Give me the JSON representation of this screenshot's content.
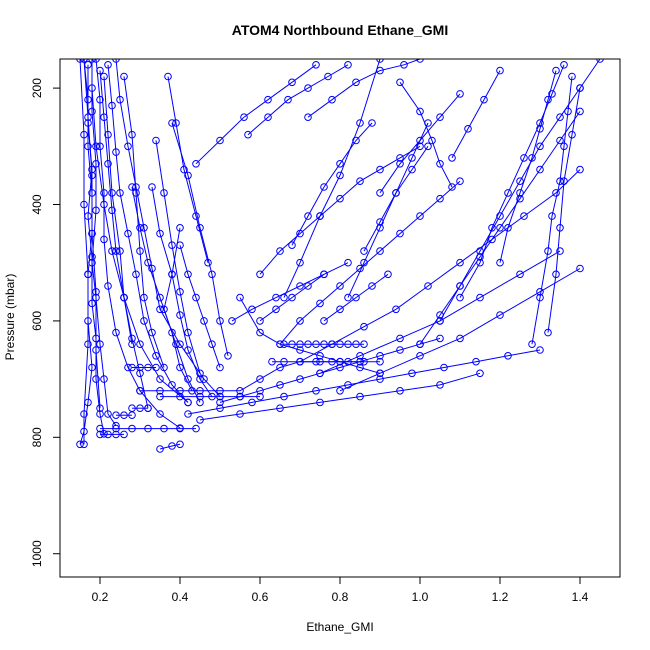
{
  "chart_data": {
    "type": "scatter",
    "title": "ATOM4 Northbound Ethane_GMI",
    "xlabel": "Ethane_GMI",
    "ylabel": "Pressure (mbar)",
    "xlim": [
      0.1,
      1.5
    ],
    "ylim": [
      1040,
      150
    ],
    "y_reversed": true,
    "x_ticks": [
      0.2,
      0.4,
      0.6,
      0.8,
      1.0,
      1.2,
      1.4
    ],
    "x_tick_labels": [
      "0.2",
      "0.4",
      "0.6",
      "0.8",
      "1.0",
      "1.2",
      "1.4"
    ],
    "y_ticks": [
      200,
      400,
      600,
      800,
      1000
    ],
    "y_tick_labels": [
      "200",
      "400",
      "600",
      "800",
      "1000"
    ],
    "grid": false,
    "color": "#0000ff",
    "marker": "open-circle",
    "series": [
      {
        "x": [
          0.16,
          0.17,
          0.17,
          0.18,
          0.18,
          0.17,
          0.17,
          0.18,
          0.17,
          0.16,
          0.15
        ],
        "y": [
          150,
          220,
          300,
          380,
          450,
          520,
          600,
          680,
          740,
          790,
          812
        ]
      },
      {
        "x": [
          0.18,
          0.18,
          0.19,
          0.19,
          0.18,
          0.19,
          0.2,
          0.21,
          0.22,
          0.24
        ],
        "y": [
          150,
          240,
          330,
          410,
          500,
          560,
          640,
          700,
          760,
          780
        ]
      },
      {
        "x": [
          0.19,
          0.2,
          0.2,
          0.21,
          0.21,
          0.22,
          0.24,
          0.27,
          0.3,
          0.35,
          0.4
        ],
        "y": [
          150,
          220,
          300,
          380,
          460,
          540,
          620,
          680,
          720,
          760,
          784
        ]
      },
      {
        "x": [
          0.17,
          0.17,
          0.18,
          0.17,
          0.18,
          0.18,
          0.19,
          0.19,
          0.2,
          0.21
        ],
        "y": [
          160,
          260,
          340,
          420,
          490,
          570,
          630,
          700,
          760,
          794
        ]
      },
      {
        "x": [
          0.2,
          0.21,
          0.22,
          0.23,
          0.24,
          0.26,
          0.28,
          0.3,
          0.32
        ],
        "y": [
          170,
          250,
          330,
          410,
          480,
          560,
          630,
          690,
          750
        ]
      },
      {
        "x": [
          0.22,
          0.23,
          0.24,
          0.25,
          0.27,
          0.29,
          0.31,
          0.34,
          0.38,
          0.42
        ],
        "y": [
          160,
          230,
          310,
          380,
          450,
          520,
          600,
          660,
          710,
          740
        ]
      },
      {
        "x": [
          0.24,
          0.25,
          0.27,
          0.29,
          0.31,
          0.33,
          0.35,
          0.4,
          0.46,
          0.5
        ],
        "y": [
          150,
          220,
          300,
          370,
          440,
          510,
          580,
          640,
          700,
          730
        ]
      },
      {
        "x": [
          0.18,
          0.19,
          0.21,
          0.23,
          0.26,
          0.3,
          0.35,
          0.42
        ],
        "y": [
          200,
          300,
          400,
          480,
          560,
          640,
          700,
          740
        ]
      },
      {
        "x": [
          0.28,
          0.3,
          0.32,
          0.35,
          0.38,
          0.4,
          0.43
        ],
        "y": [
          370,
          440,
          500,
          560,
          620,
          680,
          720
        ]
      },
      {
        "x": [
          0.33,
          0.35,
          0.38,
          0.4,
          0.42,
          0.45,
          0.48
        ],
        "y": [
          370,
          450,
          520,
          590,
          650,
          700,
          730
        ]
      },
      {
        "x": [
          0.34,
          0.36,
          0.38,
          0.4,
          0.42,
          0.45
        ],
        "y": [
          290,
          380,
          470,
          550,
          620,
          690
        ]
      },
      {
        "x": [
          0.38,
          0.42,
          0.45,
          0.48,
          0.5,
          0.52
        ],
        "y": [
          260,
          350,
          440,
          520,
          600,
          660
        ]
      },
      {
        "x": [
          0.4,
          0.38,
          0.36,
          0.39,
          0.42,
          0.45
        ],
        "y": [
          440,
          520,
          580,
          640,
          700,
          740
        ]
      },
      {
        "x": [
          0.55,
          0.6,
          0.65,
          0.7,
          0.75,
          0.8,
          0.85,
          0.9
        ],
        "y": [
          560,
          620,
          640,
          650,
          660,
          670,
          680,
          690
        ]
      },
      {
        "x": [
          0.53,
          0.58,
          0.64,
          0.7,
          0.76,
          0.82
        ],
        "y": [
          600,
          580,
          560,
          540,
          520,
          500
        ]
      },
      {
        "x": [
          0.6,
          0.65,
          0.7,
          0.75,
          0.8,
          0.85,
          0.9,
          0.95,
          1.0
        ],
        "y": [
          520,
          480,
          450,
          420,
          390,
          360,
          340,
          320,
          300
        ]
      },
      {
        "x": [
          0.65,
          0.7,
          0.75,
          0.8,
          0.85,
          0.9,
          0.95,
          1.0,
          1.05,
          1.1
        ],
        "y": [
          640,
          600,
          570,
          540,
          510,
          480,
          450,
          420,
          390,
          360
        ]
      },
      {
        "x": [
          0.7,
          0.78,
          0.86,
          0.94,
          1.02,
          1.1,
          1.18,
          1.26,
          1.34,
          1.4
        ],
        "y": [
          670,
          640,
          610,
          580,
          540,
          500,
          460,
          420,
          380,
          340
        ]
      },
      {
        "x": [
          0.75,
          0.85,
          0.95,
          1.05,
          1.15,
          1.25,
          1.35
        ],
        "y": [
          690,
          660,
          630,
          600,
          560,
          520,
          480
        ]
      },
      {
        "x": [
          0.8,
          0.9,
          1.0,
          1.1,
          1.2,
          1.3,
          1.4
        ],
        "y": [
          720,
          690,
          660,
          630,
          590,
          550,
          510
        ]
      },
      {
        "x": [
          1.0,
          1.05,
          1.1,
          1.15,
          1.2,
          1.25,
          1.3,
          1.35,
          1.4
        ],
        "y": [
          640,
          590,
          540,
          490,
          440,
          390,
          340,
          290,
          240
        ]
      },
      {
        "x": [
          1.05,
          1.1,
          1.15,
          1.2,
          1.25,
          1.3,
          1.35,
          1.4,
          1.45
        ],
        "y": [
          600,
          540,
          480,
          420,
          360,
          300,
          250,
          200,
          150
        ]
      },
      {
        "x": [
          1.1,
          1.15,
          1.18,
          1.22,
          1.26,
          1.3,
          1.33,
          1.36
        ],
        "y": [
          560,
          500,
          440,
          380,
          320,
          260,
          210,
          160
        ]
      },
      {
        "x": [
          1.2,
          1.22,
          1.25,
          1.28,
          1.3,
          1.32,
          1.34
        ],
        "y": [
          500,
          440,
          380,
          320,
          270,
          220,
          170
        ]
      },
      {
        "x": [
          1.28,
          1.3,
          1.32,
          1.33,
          1.35,
          1.36,
          1.37,
          1.38
        ],
        "y": [
          640,
          560,
          480,
          420,
          360,
          300,
          240,
          180
        ]
      },
      {
        "x": [
          1.32,
          1.34,
          1.35,
          1.36,
          1.38,
          1.4
        ],
        "y": [
          620,
          520,
          440,
          360,
          280,
          200
        ]
      },
      {
        "x": [
          0.9,
          0.95,
          1.0,
          1.05,
          1.1
        ],
        "y": [
          380,
          330,
          290,
          250,
          210
        ]
      },
      {
        "x": [
          0.82,
          0.86,
          0.9,
          0.94,
          0.98,
          1.02
        ],
        "y": [
          560,
          500,
          440,
          380,
          320,
          260
        ]
      },
      {
        "x": [
          0.68,
          0.72,
          0.76,
          0.8,
          0.84,
          0.88
        ],
        "y": [
          470,
          420,
          370,
          330,
          290,
          260
        ]
      },
      {
        "x": [
          0.72,
          0.78,
          0.84,
          0.9,
          0.96,
          1.0
        ],
        "y": [
          250,
          220,
          190,
          170,
          160,
          150
        ]
      },
      {
        "x": [
          0.57,
          0.62,
          0.67,
          0.72,
          0.77,
          0.82
        ],
        "y": [
          280,
          250,
          220,
          200,
          180,
          160
        ]
      },
      {
        "x": [
          0.44,
          0.5,
          0.56,
          0.62,
          0.68,
          0.74
        ],
        "y": [
          330,
          290,
          250,
          220,
          190,
          160
        ]
      },
      {
        "x": [
          0.9,
          0.85,
          0.8,
          0.75,
          0.7,
          0.66
        ],
        "y": [
          150,
          260,
          350,
          420,
          500,
          560
        ]
      },
      {
        "x": [
          0.5,
          0.55,
          0.6,
          0.65,
          0.7,
          0.75,
          0.8,
          0.85,
          0.9,
          0.95,
          1.0,
          1.05
        ],
        "y": [
          740,
          730,
          720,
          710,
          700,
          690,
          680,
          670,
          660,
          650,
          640,
          630
        ]
      },
      {
        "x": [
          0.42,
          0.5,
          0.58,
          0.66,
          0.74,
          0.82,
          0.9,
          0.98,
          1.06,
          1.14,
          1.22,
          1.3
        ],
        "y": [
          760,
          750,
          740,
          730,
          720,
          710,
          700,
          690,
          680,
          670,
          660,
          650
        ]
      },
      {
        "x": [
          0.45,
          0.55,
          0.65,
          0.75,
          0.85,
          0.95,
          1.05,
          1.15
        ],
        "y": [
          770,
          760,
          750,
          740,
          730,
          720,
          710,
          690
        ]
      },
      {
        "x": [
          0.3,
          0.35,
          0.4,
          0.45,
          0.5,
          0.55,
          0.6,
          0.65,
          0.7,
          0.75,
          0.8,
          0.85
        ],
        "y": [
          720,
          720,
          720,
          720,
          720,
          720,
          700,
          680,
          670,
          670,
          670,
          670
        ]
      },
      {
        "x": [
          0.66,
          0.68,
          0.7,
          0.72,
          0.74,
          0.76,
          0.78,
          0.8,
          0.82,
          0.84,
          0.86
        ],
        "y": [
          640,
          640,
          640,
          640,
          640,
          640,
          640,
          640,
          640,
          640,
          640
        ]
      },
      {
        "x": [
          0.63,
          0.66,
          0.7,
          0.74,
          0.78,
          0.82,
          0.86,
          0.9
        ],
        "y": [
          670,
          670,
          670,
          670,
          670,
          670,
          670,
          670
        ]
      },
      {
        "x": [
          0.2,
          0.24,
          0.28,
          0.32,
          0.36,
          0.4,
          0.44
        ],
        "y": [
          785,
          785,
          785,
          785,
          785,
          785,
          785
        ]
      },
      {
        "x": [
          0.35,
          0.4,
          0.45,
          0.5,
          0.55,
          0.6
        ],
        "y": [
          730,
          730,
          730,
          730,
          730,
          730
        ]
      },
      {
        "x": [
          0.28,
          0.3,
          0.32,
          0.34
        ],
        "y": [
          680,
          680,
          680,
          680
        ]
      },
      {
        "x": [
          0.28,
          0.3,
          0.32
        ],
        "y": [
          750,
          750,
          750
        ]
      },
      {
        "x": [
          0.24,
          0.26,
          0.28
        ],
        "y": [
          762,
          762,
          762
        ]
      },
      {
        "x": [
          0.2,
          0.22,
          0.24,
          0.26
        ],
        "y": [
          795,
          795,
          795,
          795
        ]
      },
      {
        "x": [
          0.35,
          0.38,
          0.4
        ],
        "y": [
          820,
          815,
          812
        ]
      },
      {
        "x": [
          0.26,
          0.28,
          0.29,
          0.3,
          0.31,
          0.33,
          0.36
        ],
        "y": [
          180,
          280,
          380,
          480,
          560,
          620,
          680
        ]
      },
      {
        "x": [
          0.21,
          0.22,
          0.23,
          0.25,
          0.26,
          0.28
        ],
        "y": [
          180,
          280,
          380,
          480,
          560,
          640
        ]
      },
      {
        "x": [
          0.15,
          0.16,
          0.16,
          0.17,
          0.17,
          0.16,
          0.16
        ],
        "y": [
          150,
          280,
          400,
          520,
          640,
          760,
          812
        ]
      },
      {
        "x": [
          0.16,
          0.17,
          0.18,
          0.18,
          0.19,
          0.19,
          0.2
        ],
        "y": [
          150,
          250,
          350,
          450,
          550,
          650,
          750
        ]
      },
      {
        "x": [
          0.4,
          0.42,
          0.44,
          0.46,
          0.48,
          0.5
        ],
        "y": [
          470,
          520,
          560,
          600,
          640,
          680
        ]
      },
      {
        "x": [
          0.37,
          0.39,
          0.41,
          0.44,
          0.47
        ],
        "y": [
          180,
          260,
          340,
          420,
          500
        ]
      },
      {
        "x": [
          0.95,
          1.0,
          1.03,
          1.05,
          1.08
        ],
        "y": [
          190,
          240,
          290,
          330,
          370
        ]
      },
      {
        "x": [
          1.08,
          1.12,
          1.16,
          1.2
        ],
        "y": [
          320,
          270,
          220,
          170
        ]
      },
      {
        "x": [
          0.86,
          0.9,
          0.94,
          0.98,
          1.02
        ],
        "y": [
          480,
          430,
          380,
          340,
          300
        ]
      },
      {
        "x": [
          0.6,
          0.64,
          0.68,
          0.72,
          0.76
        ],
        "y": [
          600,
          580,
          560,
          540,
          520
        ]
      },
      {
        "x": [
          0.76,
          0.8,
          0.84,
          0.88,
          0.92
        ],
        "y": [
          600,
          580,
          560,
          540,
          520
        ]
      }
    ]
  }
}
